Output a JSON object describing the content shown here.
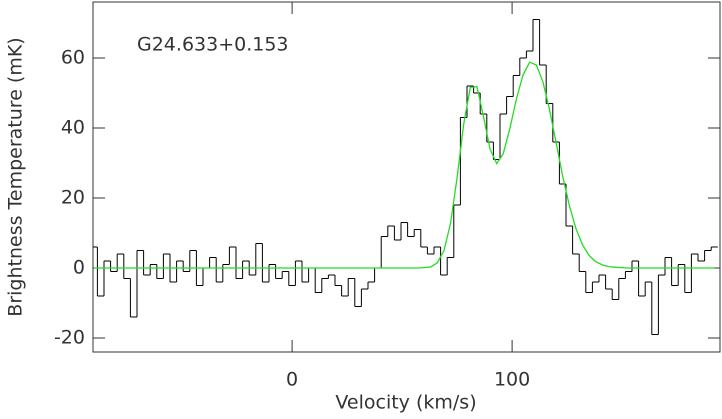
{
  "chart_data": {
    "type": "step",
    "annotation": "G24.633+0.153",
    "x_label": "Velocity (km/s)",
    "y_label": "Brightness Temperature (mK)",
    "x": [
      -90,
      -87,
      -84,
      -81,
      -78,
      -75,
      -72,
      -69,
      -66,
      -63,
      -60,
      -57,
      -54,
      -51,
      -48,
      -45,
      -42,
      -39,
      -36,
      -33,
      -30,
      -27,
      -24,
      -21,
      -18,
      -15,
      -12,
      -9,
      -6,
      -3,
      0,
      3,
      6,
      9,
      12,
      15,
      18,
      21,
      24,
      27,
      30,
      33,
      36,
      39,
      42,
      45,
      48,
      51,
      54,
      57,
      60,
      63,
      66,
      69,
      72,
      75,
      78,
      81,
      84,
      87,
      90,
      93,
      96,
      99,
      102,
      105,
      108,
      111,
      114,
      117,
      120,
      123,
      126,
      129,
      132,
      135,
      138,
      141,
      144,
      147,
      150,
      153,
      156,
      159,
      162,
      165,
      168,
      171,
      174,
      177,
      180,
      183,
      186,
      189,
      192
    ],
    "series": [
      {
        "type": "step",
        "color": "#000000",
        "values": [
          6,
          -8,
          2,
          -1,
          4,
          -3,
          -14,
          5,
          -2,
          1,
          -3,
          4,
          -4,
          2,
          -1,
          5,
          -5,
          0,
          3,
          -4,
          1,
          6,
          -3,
          2,
          -2,
          7,
          -4,
          1,
          -3,
          -1,
          -5,
          2,
          -4,
          0,
          -7,
          -3,
          -2,
          -5,
          -8,
          -3,
          -11,
          -6,
          -4,
          0,
          9,
          12,
          8,
          13,
          9,
          11,
          6,
          4,
          6,
          -2,
          3,
          18,
          43,
          52,
          50,
          44,
          36,
          31,
          44,
          49,
          55,
          60,
          62,
          71,
          58,
          47,
          36,
          24,
          12,
          4,
          -1,
          -7,
          -4,
          -2,
          -6,
          -9,
          -3,
          -1,
          2,
          -8,
          -4,
          -19,
          -2,
          3,
          -5,
          1,
          -7,
          4,
          2,
          5,
          6
        ]
      },
      {
        "type": "line",
        "color": "#22dd22",
        "values": [
          0,
          0,
          0,
          0,
          0,
          0,
          0,
          0,
          0,
          0,
          0,
          0,
          0,
          0,
          0,
          0,
          0,
          0,
          0,
          0,
          0,
          0,
          0,
          0,
          0,
          0,
          0,
          0,
          0,
          0,
          0,
          0,
          0,
          0,
          0,
          0,
          0,
          0,
          0,
          0,
          0,
          0,
          0,
          0,
          0,
          0,
          0,
          0,
          0,
          0,
          0.1,
          0.3,
          1.5,
          4.9,
          12.7,
          25.8,
          41.1,
          51.6,
          51.8,
          43.3,
          33.9,
          29.8,
          32.7,
          39.9,
          48.4,
          55.2,
          58.8,
          58,
          53.2,
          45.3,
          35.8,
          26.2,
          17.9,
          11.3,
          6.6,
          3.6,
          1.8,
          0.9,
          0.4,
          0.2,
          0.1,
          0,
          0,
          0,
          0,
          0,
          0,
          0,
          0,
          0,
          0,
          0,
          0,
          0,
          0
        ]
      }
    ],
    "xlim": [
      -90.5,
      194.5
    ],
    "ylim": [
      -24,
      76
    ],
    "xticks": [
      0,
      100
    ],
    "yticks": [
      -20,
      0,
      20,
      40,
      60
    ]
  }
}
